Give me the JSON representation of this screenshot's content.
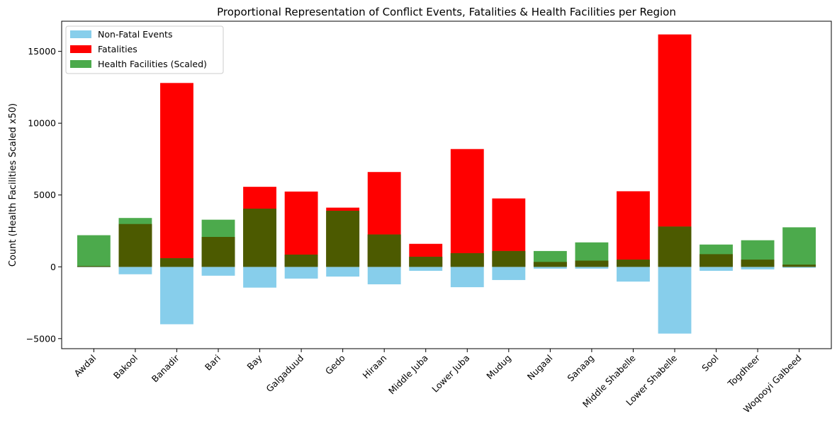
{
  "chart_data": {
    "type": "bar",
    "title": "Proportional Representation of Conflict Events, Fatalities & Health Facilities per Region",
    "xlabel": "",
    "ylabel": "Count (Health Facilities Scaled x50)",
    "ylim": [
      -5700,
      17100
    ],
    "yticks": [
      -5000,
      0,
      5000,
      10000,
      15000
    ],
    "ytick_labels": [
      "−5000",
      "0",
      "5000",
      "10000",
      "15000"
    ],
    "grid": false,
    "legend_position": "top-left",
    "categories": [
      "Awdal",
      "Bakool",
      "Banadir",
      "Bari",
      "Bay",
      "Galgaduud",
      "Gedo",
      "Hiraan",
      "Middle Juba",
      "Lower Juba",
      "Mudug",
      "Nugaal",
      "Sanaag",
      "Middle Shabelle",
      "Lower Shabelle",
      "Sool",
      "Togdheer",
      "Woqooyi Galbeed"
    ],
    "series": [
      {
        "name": "Non-Fatal Events",
        "color": "#87CEEB",
        "values": [
          -30,
          -520,
          -4000,
          -620,
          -1450,
          -820,
          -680,
          -1220,
          -280,
          -1420,
          -920,
          -130,
          -130,
          -1030,
          -4650,
          -280,
          -180,
          -70
        ]
      },
      {
        "name": "Fatalities",
        "color": "#FF0000",
        "values": [
          50,
          2980,
          12800,
          2080,
          5570,
          5240,
          4120,
          6600,
          1600,
          8200,
          4760,
          340,
          430,
          5260,
          16180,
          880,
          500,
          150
        ]
      },
      {
        "name": "Health Facilities (Scaled)",
        "color": "#4CAA4C",
        "values": [
          2200,
          3400,
          600,
          3280,
          4050,
          850,
          3900,
          2250,
          700,
          950,
          1100,
          1100,
          1700,
          500,
          2800,
          1550,
          1850,
          2750
        ]
      }
    ],
    "overlap_color": "#4C5A00"
  }
}
